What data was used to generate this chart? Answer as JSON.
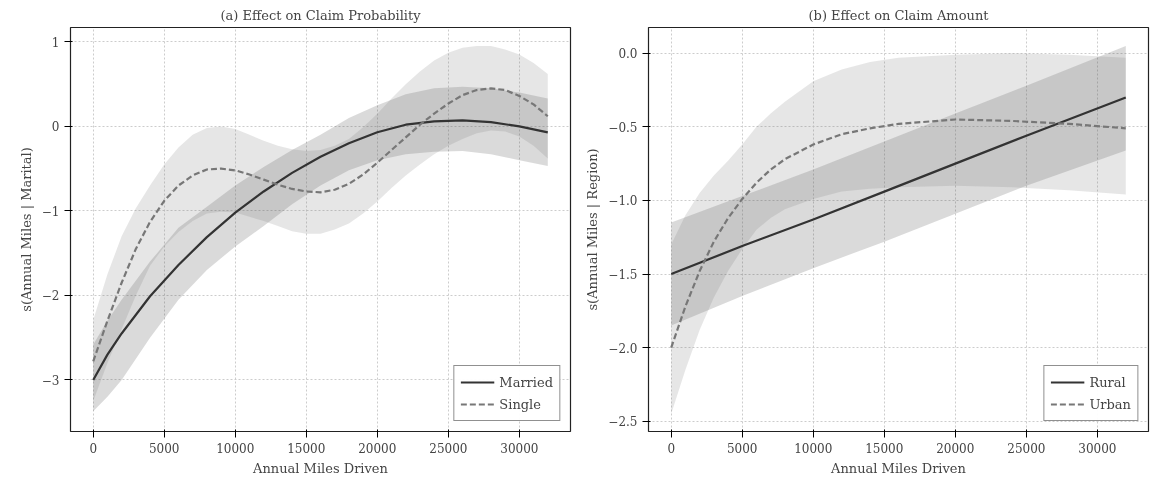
{
  "chart_data": [
    {
      "type": "line",
      "title": "(a) Effect on Claim Probability",
      "xlabel": "Annual Miles Driven",
      "ylabel": "s(Annual Miles | Marital)",
      "xlim": [
        -1600,
        33600
      ],
      "ylim": [
        -3.61,
        1.17
      ],
      "xticks": [
        0,
        5000,
        10000,
        15000,
        20000,
        25000,
        30000
      ],
      "yticks": [
        {
          "value": -3,
          "label": "−3"
        },
        {
          "value": -2,
          "label": "−2"
        },
        {
          "value": -1,
          "label": "−1"
        },
        {
          "value": 0,
          "label": "0"
        },
        {
          "value": 1,
          "label": "1"
        }
      ],
      "grid": true,
      "legend": "bottom right",
      "series": [
        {
          "name": "Married",
          "color": "#333333",
          "line_style": "solid",
          "x": [
            0,
            1000,
            2000,
            4000,
            6000,
            8000,
            10000,
            12000,
            14000,
            16000,
            18000,
            20000,
            22000,
            24000,
            26000,
            28000,
            30000,
            32000
          ],
          "values": [
            -3.0,
            -2.7,
            -2.45,
            -2.01,
            -1.64,
            -1.31,
            -1.02,
            -0.77,
            -0.55,
            -0.36,
            -0.2,
            -0.07,
            0.02,
            0.06,
            0.07,
            0.05,
            0.0,
            -0.07
          ],
          "upper": [
            -2.58,
            -2.3,
            -2.05,
            -1.6,
            -1.2,
            -0.95,
            -0.7,
            -0.48,
            -0.28,
            -0.1,
            0.1,
            0.25,
            0.38,
            0.45,
            0.47,
            0.45,
            0.4,
            0.33
          ],
          "lower": [
            -3.37,
            -3.2,
            -3.0,
            -2.5,
            -2.05,
            -1.7,
            -1.42,
            -1.18,
            -0.92,
            -0.7,
            -0.52,
            -0.4,
            -0.33,
            -0.3,
            -0.29,
            -0.33,
            -0.4,
            -0.47
          ]
        },
        {
          "name": "Single",
          "color": "#777777",
          "line_style": "dashed",
          "x": [
            0,
            1000,
            2000,
            3000,
            4000,
            5000,
            6000,
            7000,
            8000,
            9000,
            10000,
            11000,
            12000,
            13000,
            14000,
            15000,
            16000,
            17000,
            18000,
            19000,
            20000,
            21000,
            22000,
            23000,
            24000,
            25000,
            26000,
            27000,
            28000,
            29000,
            30000,
            31000,
            32000
          ],
          "values": [
            -2.78,
            -2.3,
            -1.85,
            -1.45,
            -1.13,
            -0.88,
            -0.7,
            -0.58,
            -0.51,
            -0.5,
            -0.52,
            -0.57,
            -0.63,
            -0.69,
            -0.74,
            -0.77,
            -0.78,
            -0.75,
            -0.68,
            -0.57,
            -0.43,
            -0.28,
            -0.13,
            0.02,
            0.15,
            0.27,
            0.37,
            0.43,
            0.45,
            0.43,
            0.36,
            0.26,
            0.12
          ],
          "upper": [
            -2.29,
            -1.75,
            -1.3,
            -0.97,
            -0.7,
            -0.45,
            -0.25,
            -0.1,
            -0.02,
            0.0,
            -0.03,
            -0.1,
            -0.17,
            -0.23,
            -0.27,
            -0.29,
            -0.28,
            -0.23,
            -0.15,
            -0.01,
            0.15,
            0.33,
            0.5,
            0.65,
            0.78,
            0.87,
            0.93,
            0.95,
            0.95,
            0.91,
            0.85,
            0.75,
            0.62
          ],
          "lower": [
            -3.25,
            -2.8,
            -2.4,
            -2.0,
            -1.65,
            -1.42,
            -1.25,
            -1.12,
            -1.03,
            -1.01,
            -1.02,
            -1.07,
            -1.12,
            -1.18,
            -1.24,
            -1.27,
            -1.27,
            -1.22,
            -1.15,
            -1.03,
            -0.89,
            -0.73,
            -0.58,
            -0.45,
            -0.33,
            -0.23,
            -0.15,
            -0.08,
            -0.05,
            -0.06,
            -0.12,
            -0.23,
            -0.38
          ]
        }
      ]
    },
    {
      "type": "line",
      "title": "(b) Effect on Claim Amount",
      "xlabel": "Annual Miles Driven",
      "ylabel": "s(Annual Miles | Region)",
      "xlim": [
        -1600,
        33600
      ],
      "ylim": [
        -2.57,
        0.175
      ],
      "xticks": [
        0,
        5000,
        10000,
        15000,
        20000,
        25000,
        30000
      ],
      "yticks": [
        {
          "value": -2.5,
          "label": "−2.5"
        },
        {
          "value": -2,
          "label": "−2.0"
        },
        {
          "value": -1.5,
          "label": "−1.5"
        },
        {
          "value": -1,
          "label": "−1.0"
        },
        {
          "value": -0.5,
          "label": "−0.5"
        },
        {
          "value": 0,
          "label": "0.0"
        }
      ],
      "grid": true,
      "legend": "bottom right",
      "series": [
        {
          "name": "Rural",
          "color": "#333333",
          "line_style": "solid",
          "x": [
            0,
            5000,
            10000,
            15000,
            20000,
            25000,
            32000
          ],
          "values": [
            -1.5,
            -1.31,
            -1.13,
            -0.94,
            -0.75,
            -0.56,
            -0.3
          ],
          "upper": [
            -1.15,
            -0.97,
            -0.79,
            -0.6,
            -0.41,
            -0.22,
            0.05
          ],
          "lower": [
            -1.85,
            -1.65,
            -1.46,
            -1.28,
            -1.09,
            -0.9,
            -0.66
          ]
        },
        {
          "name": "Urban",
          "color": "#777777",
          "line_style": "dashed",
          "x": [
            0,
            1000,
            2000,
            3000,
            4000,
            5000,
            6000,
            7000,
            8000,
            10000,
            12000,
            14000,
            16000,
            20000,
            24000,
            28000,
            32000
          ],
          "values": [
            -2.0,
            -1.72,
            -1.48,
            -1.28,
            -1.12,
            -0.99,
            -0.88,
            -0.79,
            -0.72,
            -0.62,
            -0.55,
            -0.51,
            -0.48,
            -0.45,
            -0.46,
            -0.48,
            -0.51
          ],
          "upper": [
            -1.3,
            -1.1,
            -0.95,
            -0.83,
            -0.73,
            -0.62,
            -0.5,
            -0.41,
            -0.33,
            -0.19,
            -0.11,
            -0.06,
            -0.03,
            -0.01,
            0.0,
            -0.01,
            -0.03
          ],
          "lower": [
            -2.45,
            -2.15,
            -1.88,
            -1.66,
            -1.48,
            -1.33,
            -1.2,
            -1.12,
            -1.06,
            -0.99,
            -0.94,
            -0.92,
            -0.91,
            -0.9,
            -0.91,
            -0.93,
            -0.96
          ]
        }
      ]
    }
  ]
}
